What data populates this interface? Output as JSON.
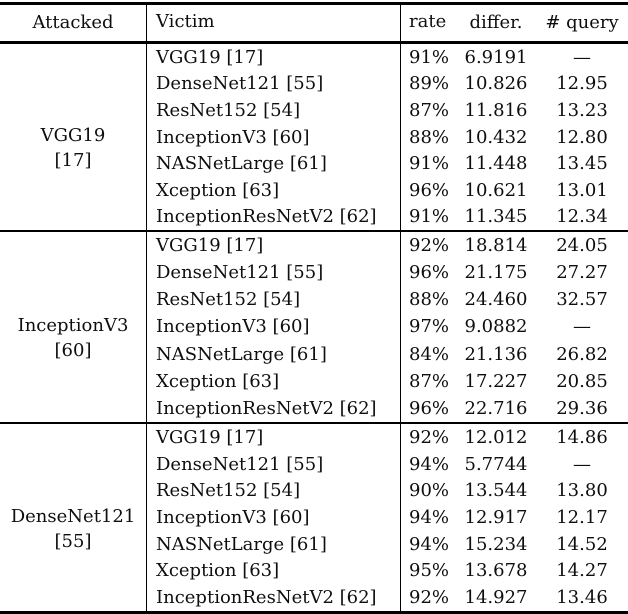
{
  "table": {
    "headers": {
      "attacked": "Attacked",
      "victim": "Victim",
      "rate": "rate",
      "differ": "differ.",
      "query": "# query"
    },
    "blocks": [
      {
        "attacked_name": "VGG19",
        "attacked_ref": "[17]",
        "rows": [
          {
            "victim": "VGG19 [17]",
            "rate": "91%",
            "differ": "6.9191",
            "query": "—"
          },
          {
            "victim": "DenseNet121 [55]",
            "rate": "89%",
            "differ": "10.826",
            "query": "12.95"
          },
          {
            "victim": "ResNet152 [54]",
            "rate": "87%",
            "differ": "11.816",
            "query": "13.23"
          },
          {
            "victim": "InceptionV3 [60]",
            "rate": "88%",
            "differ": "10.432",
            "query": "12.80"
          },
          {
            "victim": "NASNetLarge [61]",
            "rate": "91%",
            "differ": "11.448",
            "query": "13.45"
          },
          {
            "victim": "Xception [63]",
            "rate": "96%",
            "differ": "10.621",
            "query": "13.01"
          },
          {
            "victim": "InceptionResNetV2 [62]",
            "rate": "91%",
            "differ": "11.345",
            "query": "12.34"
          }
        ]
      },
      {
        "attacked_name": "InceptionV3",
        "attacked_ref": "[60]",
        "rows": [
          {
            "victim": "VGG19 [17]",
            "rate": "92%",
            "differ": "18.814",
            "query": "24.05"
          },
          {
            "victim": "DenseNet121 [55]",
            "rate": "96%",
            "differ": "21.175",
            "query": "27.27"
          },
          {
            "victim": "ResNet152 [54]",
            "rate": "88%",
            "differ": "24.460",
            "query": "32.57"
          },
          {
            "victim": "InceptionV3 [60]",
            "rate": "97%",
            "differ": "9.0882",
            "query": "—"
          },
          {
            "victim": "NASNetLarge [61]",
            "rate": "84%",
            "differ": "21.136",
            "query": "26.82"
          },
          {
            "victim": "Xception [63]",
            "rate": "87%",
            "differ": "17.227",
            "query": "20.85"
          },
          {
            "victim": "InceptionResNetV2 [62]",
            "rate": "96%",
            "differ": "22.716",
            "query": "29.36"
          }
        ]
      },
      {
        "attacked_name": "DenseNet121",
        "attacked_ref": "[55]",
        "rows": [
          {
            "victim": "VGG19 [17]",
            "rate": "92%",
            "differ": "12.012",
            "query": "14.86"
          },
          {
            "victim": "DenseNet121 [55]",
            "rate": "94%",
            "differ": "5.7744",
            "query": "—"
          },
          {
            "victim": "ResNet152 [54]",
            "rate": "90%",
            "differ": "13.544",
            "query": "13.80"
          },
          {
            "victim": "InceptionV3 [60]",
            "rate": "94%",
            "differ": "12.917",
            "query": "12.17"
          },
          {
            "victim": "NASNetLarge [61]",
            "rate": "94%",
            "differ": "15.234",
            "query": "14.52"
          },
          {
            "victim": "Xception [63]",
            "rate": "95%",
            "differ": "13.678",
            "query": "14.27"
          },
          {
            "victim": "InceptionResNetV2 [62]",
            "rate": "92%",
            "differ": "14.927",
            "query": "13.46"
          }
        ]
      }
    ]
  }
}
